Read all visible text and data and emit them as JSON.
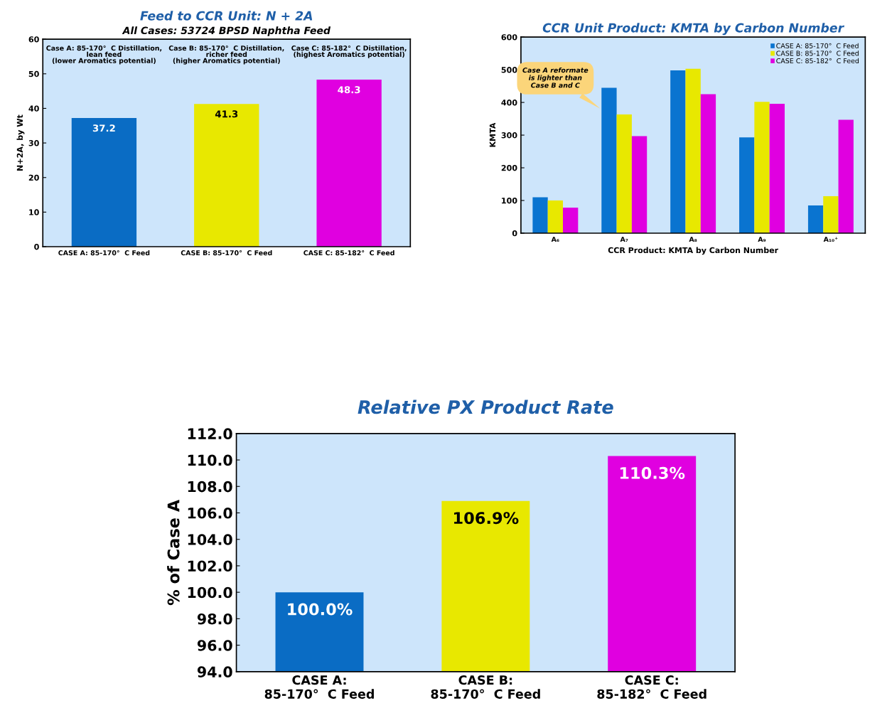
{
  "chart_data": [
    {
      "type": "bar",
      "title": "Feed to CCR Unit: N + 2A",
      "subtitle": "All Cases: 53724 BPSD Naphtha Feed",
      "ylabel": "N+2A, by Wt",
      "categories": [
        "CASE A: 85-170°  C Feed",
        "CASE B: 85-170°  C Feed",
        "CASE C: 85-182°  C Feed"
      ],
      "values": [
        37.2,
        41.3,
        48.3
      ],
      "colors": [
        "#0a6cc4",
        "#e8e800",
        "#e000e0"
      ],
      "data_labels": true,
      "annotations": [
        "Case A: 85-170°  C Distillation,\nlean feed\n(lower Aromatics potential)",
        "Case B: 85-170°  C Distillation,\nricher feed\n(higher Aromatics potential)",
        "Case C: 85-182°  C Distillation,\n(highest Aromatics potential)"
      ],
      "ylim": [
        0,
        60
      ],
      "yticks": [
        0,
        10,
        20,
        30,
        40,
        50,
        60
      ],
      "grid": false,
      "legend": false
    },
    {
      "type": "bar",
      "title": "CCR Unit Product: KMTA by Carbon Number",
      "xlabel": "CCR Product: KMTA by Carbon Number",
      "ylabel": "KMTA",
      "categories": [
        "A₆",
        "A₇",
        "A₈",
        "A₉",
        "A₁₀⁺"
      ],
      "series": [
        {
          "name": "CASE A: 85-170°  C Feed",
          "color": "#0a74d0",
          "values": [
            110,
            445,
            498,
            293,
            85
          ]
        },
        {
          "name": "CASE B: 85-170°  C Feed",
          "color": "#e8e800",
          "values": [
            100,
            363,
            503,
            402,
            113
          ]
        },
        {
          "name": "CASE C: 85-182°  C Feed",
          "color": "#e000e0",
          "values": [
            78,
            297,
            425,
            396,
            347
          ]
        }
      ],
      "annotations": [
        "Case A reformate\nis lighter than\nCase B and C"
      ],
      "ylim": [
        0,
        600
      ],
      "yticks": [
        0,
        100,
        200,
        300,
        400,
        500,
        600
      ],
      "grid": false,
      "legend": "top right"
    },
    {
      "type": "bar",
      "title": "Relative PX Product Rate",
      "ylabel": "% of Case A",
      "categories": [
        "CASE A:\n85-170°  C Feed",
        "CASE B:\n85-170°  C Feed",
        "CASE C:\n85-182°  C Feed"
      ],
      "values": [
        100.0,
        106.9,
        110.3
      ],
      "value_labels": [
        "100.0%",
        "106.9%",
        "110.3%"
      ],
      "colors": [
        "#0a6cc4",
        "#e8e800",
        "#e000e0"
      ],
      "ylim": [
        94,
        112
      ],
      "yticks": [
        {
          "value": 94,
          "label": "94.0"
        },
        {
          "value": 96,
          "label": "96.0"
        },
        {
          "value": 98,
          "label": "98.0"
        },
        {
          "value": 100,
          "label": "100.0"
        },
        {
          "value": 102,
          "label": "102.0"
        },
        {
          "value": 104,
          "label": "104.0"
        },
        {
          "value": 106,
          "label": "106.0"
        },
        {
          "value": 108,
          "label": "108.0"
        },
        {
          "value": 110,
          "label": "110.0"
        },
        {
          "value": 112,
          "label": "112.0"
        }
      ],
      "grid": false,
      "legend": false
    }
  ]
}
